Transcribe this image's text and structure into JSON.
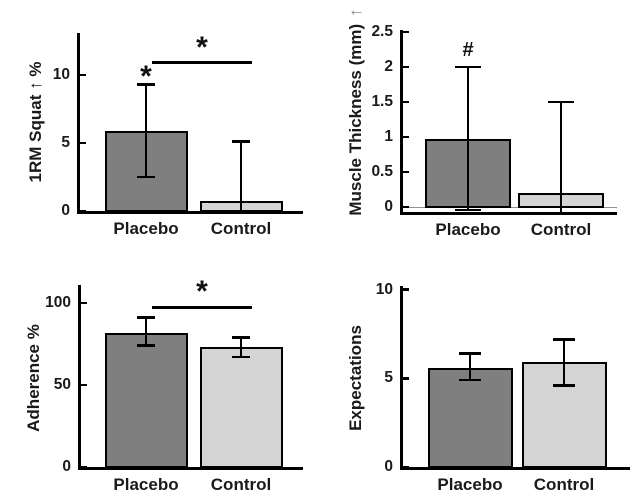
{
  "figure": {
    "background": "#ffffff"
  },
  "colors": {
    "placebo_fill": "#7f7f7f",
    "control_fill": "#d4d4d4",
    "edge": "#000000",
    "text": "#1a1a1a",
    "zero_line": "#909090",
    "arrow_gray": "#8a8a8a"
  },
  "chart_data": [
    {
      "type": "bar",
      "ylabel": "1RM Squat ↑ %",
      "ylabel_suffix": "",
      "categories": [
        "Placebo",
        "Control"
      ],
      "values": [
        5.9,
        0.7
      ],
      "error_low": [
        2.5,
        0
      ],
      "error_high": [
        9.3,
        5.1
      ],
      "yticks": [
        0,
        5,
        10
      ],
      "ylim": [
        0,
        13.1
      ],
      "grid": false,
      "zero_line": false,
      "markers": [
        {
          "category": 0,
          "label": "*",
          "y": 9.85
        }
      ],
      "significance": {
        "label": "*",
        "y": 10.9,
        "between": [
          "Placebo",
          "Control"
        ]
      }
    },
    {
      "type": "bar",
      "ylabel": "Muscle Thickness (mm)",
      "ylabel_suffix": "↑",
      "categories": [
        "Placebo",
        "Control"
      ],
      "values": [
        0.97,
        0.2
      ],
      "error_low": [
        -0.04,
        -0.07
      ],
      "error_high": [
        2.0,
        1.5
      ],
      "yticks": [
        0,
        0.5,
        1,
        1.5,
        2,
        2.5
      ],
      "ylim": [
        -0.07,
        2.53
      ],
      "grid": false,
      "zero_line": true,
      "markers": [
        {
          "category": 0,
          "label": "#",
          "y": 2.25
        }
      ],
      "significance": null
    },
    {
      "type": "bar",
      "ylabel": "Adherence %",
      "ylabel_suffix": "",
      "categories": [
        "Placebo",
        "Control"
      ],
      "values": [
        82,
        73
      ],
      "error_low": [
        74,
        67
      ],
      "error_high": [
        91,
        79
      ],
      "yticks": [
        0,
        50,
        100
      ],
      "ylim": [
        0,
        111
      ],
      "grid": false,
      "zero_line": false,
      "markers": [],
      "significance": {
        "label": "*",
        "y": 97.5,
        "between": [
          "Placebo",
          "Control"
        ]
      }
    },
    {
      "type": "bar",
      "ylabel": "Expectations",
      "ylabel_suffix": "",
      "categories": [
        "Placebo",
        "Control"
      ],
      "values": [
        5.6,
        5.9
      ],
      "error_low": [
        4.9,
        4.6
      ],
      "error_high": [
        6.4,
        7.2
      ],
      "yticks": [
        0,
        5,
        10
      ],
      "ylim": [
        0,
        10.2
      ],
      "grid": false,
      "zero_line": false,
      "markers": [],
      "significance": null
    }
  ]
}
